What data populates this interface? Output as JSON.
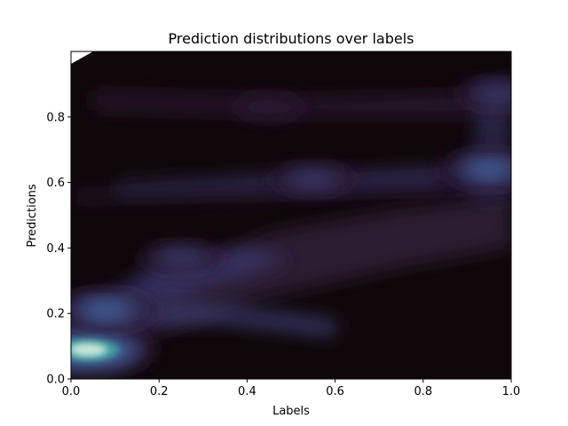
{
  "chart_data": {
    "type": "heatmap",
    "subtype": "2d-kde-density",
    "title": "Prediction distributions over labels",
    "xlabel": "Labels",
    "ylabel": "Predictions",
    "xlim": [
      0.0,
      1.0
    ],
    "ylim": [
      0.0,
      1.0
    ],
    "x_ticks": [
      "0.0",
      "0.2",
      "0.4",
      "0.6",
      "0.8",
      "1.0"
    ],
    "y_ticks": [
      "0.0",
      "0.2",
      "0.4",
      "0.6",
      "0.8"
    ],
    "x_tick_values": [
      0.0,
      0.2,
      0.4,
      0.6,
      0.8,
      1.0
    ],
    "y_tick_values": [
      0.0,
      0.2,
      0.4,
      0.6,
      0.8
    ],
    "grid": false,
    "legend": "none",
    "colormap": "mako",
    "colors": {
      "background_low": "#0f0709",
      "low": "#2a1b34",
      "mid": "#3b3a6e",
      "midhigh": "#3f6aa0",
      "high": "#3ea7a3",
      "peak": "#def5e5"
    },
    "density_modes": [
      {
        "x": 0.04,
        "y": 0.09,
        "density": 1.0
      },
      {
        "x": 0.08,
        "y": 0.21,
        "density": 0.62
      },
      {
        "x": 0.95,
        "y": 0.64,
        "density": 0.55
      },
      {
        "x": 0.25,
        "y": 0.37,
        "density": 0.32
      },
      {
        "x": 0.55,
        "y": 0.61,
        "density": 0.33
      },
      {
        "x": 0.97,
        "y": 0.87,
        "density": 0.3
      },
      {
        "x": 0.45,
        "y": 0.83,
        "density": 0.12
      }
    ]
  }
}
